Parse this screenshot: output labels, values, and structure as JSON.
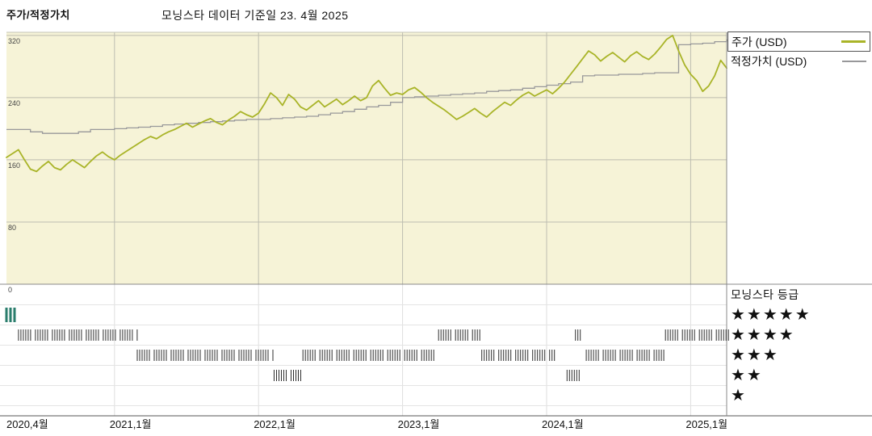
{
  "header": {
    "title": "주가/적정가치",
    "subtitle": "모닝스타 데이터 기준일 23. 4월 2025"
  },
  "legend": {
    "price_label": "주가 (USD)",
    "fair_value_label": "적정가치 (USD)"
  },
  "rating_legend": {
    "title": "모닝스타 등급",
    "rows": [
      {
        "stars": "★★★★★",
        "value": 5
      },
      {
        "stars": "★★★★",
        "value": 4
      },
      {
        "stars": "★★★",
        "value": 3
      },
      {
        "stars": "★★",
        "value": 2
      },
      {
        "stars": "★",
        "value": 1
      }
    ]
  },
  "chart_data": {
    "type": "line",
    "title": "주가/적정가치",
    "subtitle": "모닝스타 데이터 기준일 23. 4월 2025",
    "x_start": "2020-04",
    "x_end": "2025-04",
    "x_tick_labels": [
      "2020,4월",
      "2021,1월",
      "2022,1월",
      "2023,1월",
      "2024,1월",
      "2025,1월"
    ],
    "x_tick_month_index": [
      0,
      9,
      21,
      33,
      45,
      57
    ],
    "y_ticks": [
      0,
      80,
      160,
      240,
      320
    ],
    "ylim": [
      0,
      324
    ],
    "background": "#f6f3d7",
    "series": [
      {
        "name": "주가 (USD)",
        "color": "#a9b428",
        "points_per_month": 2,
        "values": [
          163,
          168,
          173,
          160,
          148,
          145,
          152,
          158,
          150,
          147,
          154,
          160,
          155,
          150,
          158,
          165,
          170,
          164,
          160,
          166,
          171,
          176,
          181,
          186,
          190,
          187,
          192,
          196,
          199,
          203,
          207,
          202,
          206,
          210,
          213,
          208,
          205,
          211,
          216,
          222,
          218,
          215,
          220,
          232,
          246,
          240,
          230,
          244,
          238,
          228,
          224,
          230,
          236,
          228,
          233,
          238,
          231,
          236,
          242,
          236,
          240,
          255,
          262,
          252,
          243,
          246,
          244,
          250,
          253,
          247,
          240,
          234,
          229,
          224,
          218,
          212,
          216,
          221,
          226,
          220,
          215,
          222,
          228,
          234,
          230,
          237,
          243,
          247,
          242,
          246,
          250,
          245,
          252,
          260,
          270,
          280,
          290,
          300,
          295,
          287,
          293,
          298,
          292,
          286,
          294,
          299,
          293,
          289,
          296,
          305,
          315,
          320,
          300,
          282,
          270,
          262,
          248,
          255,
          268,
          288,
          278
        ]
      },
      {
        "name": "적정가치 (USD)",
        "color": "#98989a",
        "step": true,
        "points_per_month": 1,
        "values": [
          199,
          199,
          196,
          194,
          194,
          194,
          196,
          199,
          199,
          200,
          201,
          202,
          203,
          205,
          206,
          207,
          208,
          209,
          210,
          211,
          212,
          212,
          213,
          214,
          215,
          216,
          218,
          220,
          222,
          225,
          228,
          230,
          234,
          240,
          241,
          242,
          243,
          244,
          245,
          246,
          248,
          249,
          250,
          252,
          254,
          256,
          258,
          260,
          268,
          269,
          269,
          270,
          270,
          271,
          272,
          272,
          308,
          309,
          310,
          312,
          314,
          314
        ]
      }
    ],
    "rating_timeline": {
      "title": "모닝스타 등급",
      "tick_color": "#2e2e2e",
      "special_color": "#2a7d6c",
      "segments": [
        {
          "rating": 5,
          "start_month": 0.0,
          "end_month": 1.0,
          "color": "#2a7d6c",
          "thick": true
        },
        {
          "rating": 4,
          "start_month": 1.0,
          "end_month": 10.9
        },
        {
          "rating": 3,
          "start_month": 10.9,
          "end_month": 22.3
        },
        {
          "rating": 2,
          "start_month": 22.3,
          "end_month": 24.7
        },
        {
          "rating": 3,
          "start_month": 24.7,
          "end_month": 35.8
        },
        {
          "rating": 4,
          "start_month": 36.0,
          "end_month": 39.6
        },
        {
          "rating": 3,
          "start_month": 39.6,
          "end_month": 45.7
        },
        {
          "rating": 2,
          "start_month": 46.7,
          "end_month": 48.1
        },
        {
          "rating": 4,
          "start_month": 47.4,
          "end_month": 47.9
        },
        {
          "rating": 3,
          "start_month": 48.3,
          "end_month": 54.9
        },
        {
          "rating": 4,
          "start_month": 54.9,
          "end_month": 60.3
        }
      ]
    }
  }
}
